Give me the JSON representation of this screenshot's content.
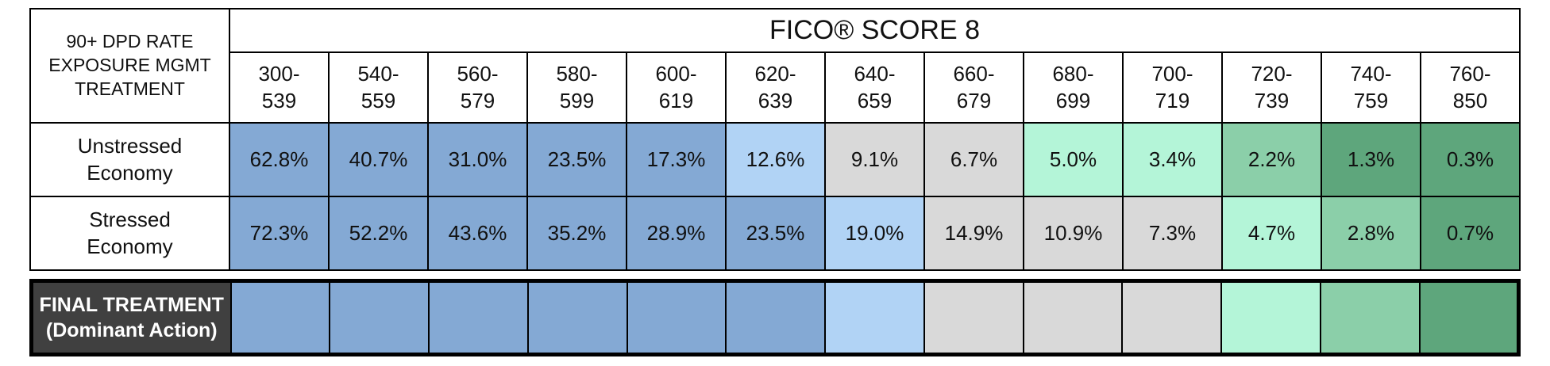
{
  "header": {
    "corner_lines": [
      "90+ DPD RATE",
      "EXPOSURE MGMT",
      "TREATMENT"
    ],
    "title": "FICO® SCORE 8",
    "ranges": [
      "300-539",
      "540-559",
      "560-579",
      "580-599",
      "600-619",
      "620-639",
      "640-659",
      "660-679",
      "680-699",
      "700-719",
      "720-739",
      "740-759",
      "760-850"
    ]
  },
  "table": {
    "rows": [
      {
        "label": "Unstressed Economy",
        "values": [
          "62.8%",
          "40.7%",
          "31.0%",
          "23.5%",
          "17.3%",
          "12.6%",
          "9.1%",
          "6.7%",
          "5.0%",
          "3.4%",
          "2.2%",
          "1.3%",
          "0.3%"
        ],
        "colors": [
          "#84a9d4",
          "#84a9d4",
          "#84a9d4",
          "#84a9d4",
          "#84a9d4",
          "#b1d3f5",
          "#d9d9d9",
          "#d9d9d9",
          "#b4f5d8",
          "#b4f5d8",
          "#8bcfa9",
          "#5ea67c",
          "#5ea67c"
        ]
      },
      {
        "label": "Stressed Economy",
        "values": [
          "72.3%",
          "52.2%",
          "43.6%",
          "35.2%",
          "28.9%",
          "23.5%",
          "19.0%",
          "14.9%",
          "10.9%",
          "7.3%",
          "4.7%",
          "2.8%",
          "0.7%"
        ],
        "colors": [
          "#84a9d4",
          "#84a9d4",
          "#84a9d4",
          "#84a9d4",
          "#84a9d4",
          "#84a9d4",
          "#b1d3f5",
          "#d9d9d9",
          "#d9d9d9",
          "#d9d9d9",
          "#b4f5d8",
          "#8bcfa9",
          "#5ea67c"
        ]
      }
    ]
  },
  "final": {
    "label_lines": [
      "FINAL TREATMENT",
      "(Dominant Action)"
    ],
    "colors": [
      "#84a9d4",
      "#84a9d4",
      "#84a9d4",
      "#84a9d4",
      "#84a9d4",
      "#84a9d4",
      "#b1d3f5",
      "#d9d9d9",
      "#d9d9d9",
      "#d9d9d9",
      "#b4f5d8",
      "#8bcfa9",
      "#5ea67c"
    ]
  }
}
